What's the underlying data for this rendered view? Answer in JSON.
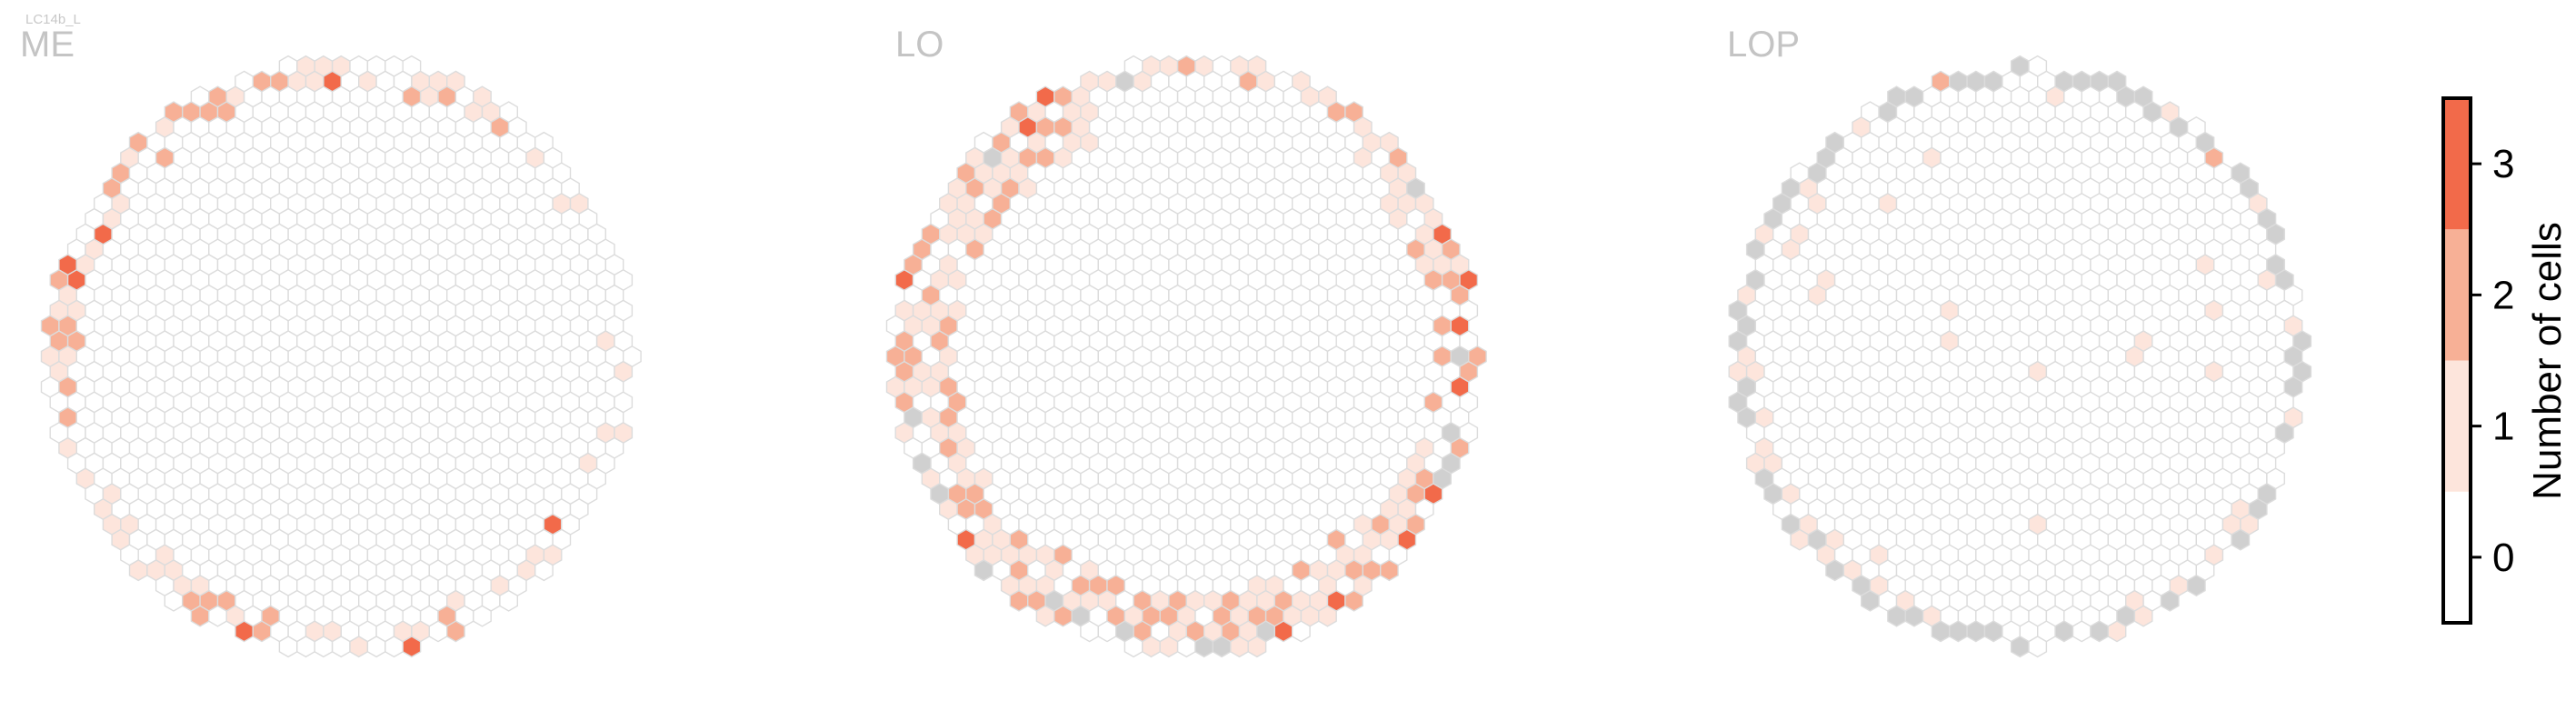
{
  "figure": {
    "cell_type_label": "LC14b_L"
  },
  "chart_data": {
    "type": "heatmap",
    "description_kind": "hexagonal column maps",
    "panels": [
      {
        "title": "ME"
      },
      {
        "title": "LO"
      },
      {
        "title": "LOP"
      }
    ],
    "colorbar": {
      "label": "Number of cells",
      "ticks": [
        "0",
        "1",
        "2",
        "3"
      ],
      "range": [
        -0.5,
        3.5
      ],
      "colors": [
        "#ffffff",
        "#fde5dc",
        "#f7b096",
        "#f26a4a"
      ]
    },
    "no_data_color": "#d0d0d0"
  }
}
